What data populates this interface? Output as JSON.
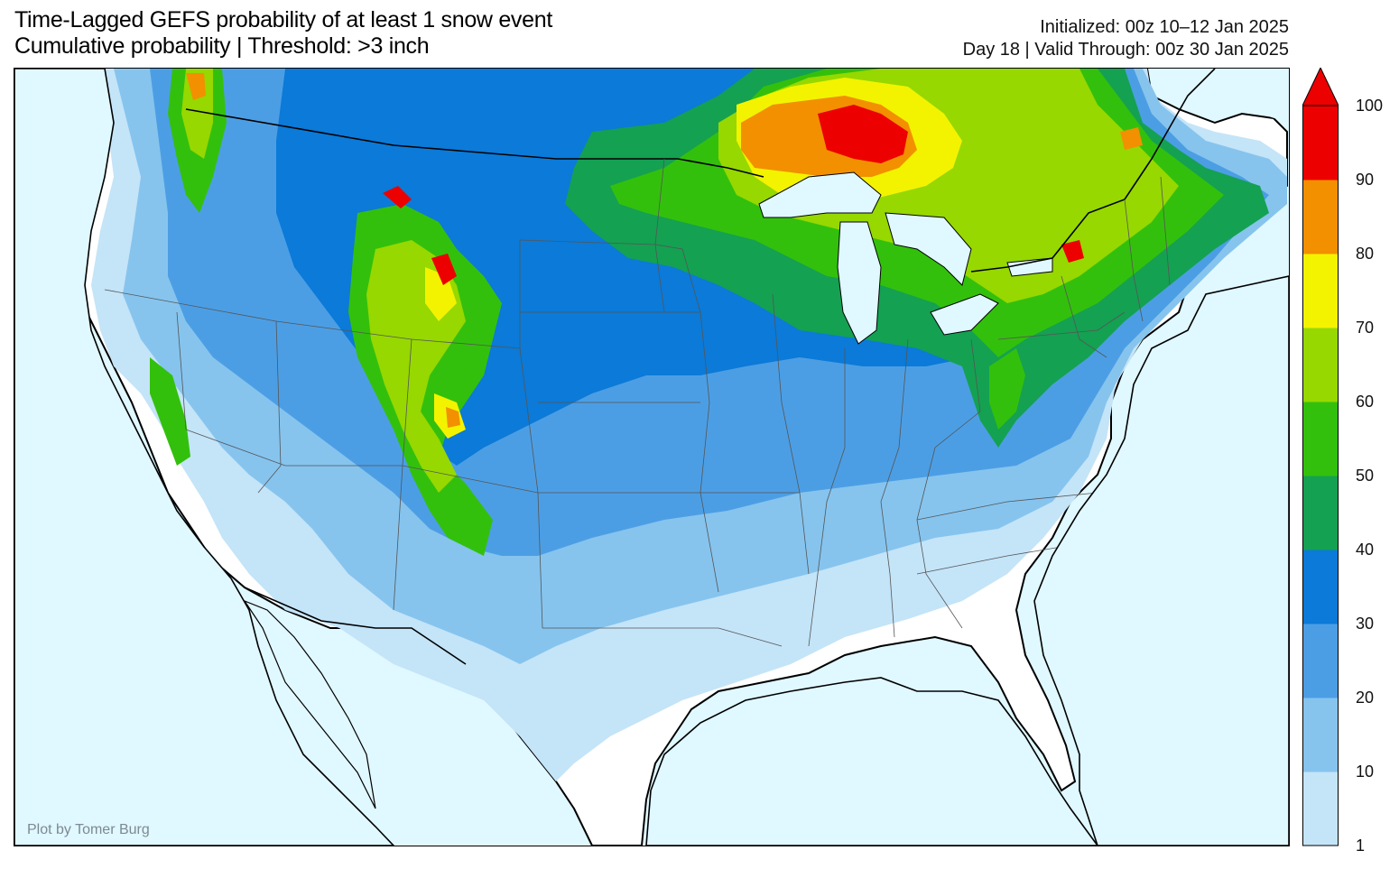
{
  "header": {
    "title": "Time-Lagged GEFS probability of at least 1 snow event",
    "subtitle": "Cumulative probability | Threshold: >3 inch",
    "initialized": "Initialized: 00z 10–12 Jan 2025",
    "valid": "Day 18 | Valid Through: 00z 30 Jan 2025"
  },
  "map": {
    "credit": "Plot by Tomer Burg",
    "land_color": "#ffffff",
    "water_color": "#e0f8ff"
  },
  "colorbar": {
    "ticks": [
      "1",
      "10",
      "20",
      "30",
      "40",
      "50",
      "60",
      "70",
      "80",
      "90",
      "100"
    ],
    "colors": [
      "#c4e4f8",
      "#86c4ee",
      "#4c9ee4",
      "#0b7ad8",
      "#14a152",
      "#33c00c",
      "#96d800",
      "#f3f300",
      "#f29000",
      "#ec0000"
    ],
    "extend_color": "#ec0000"
  }
}
